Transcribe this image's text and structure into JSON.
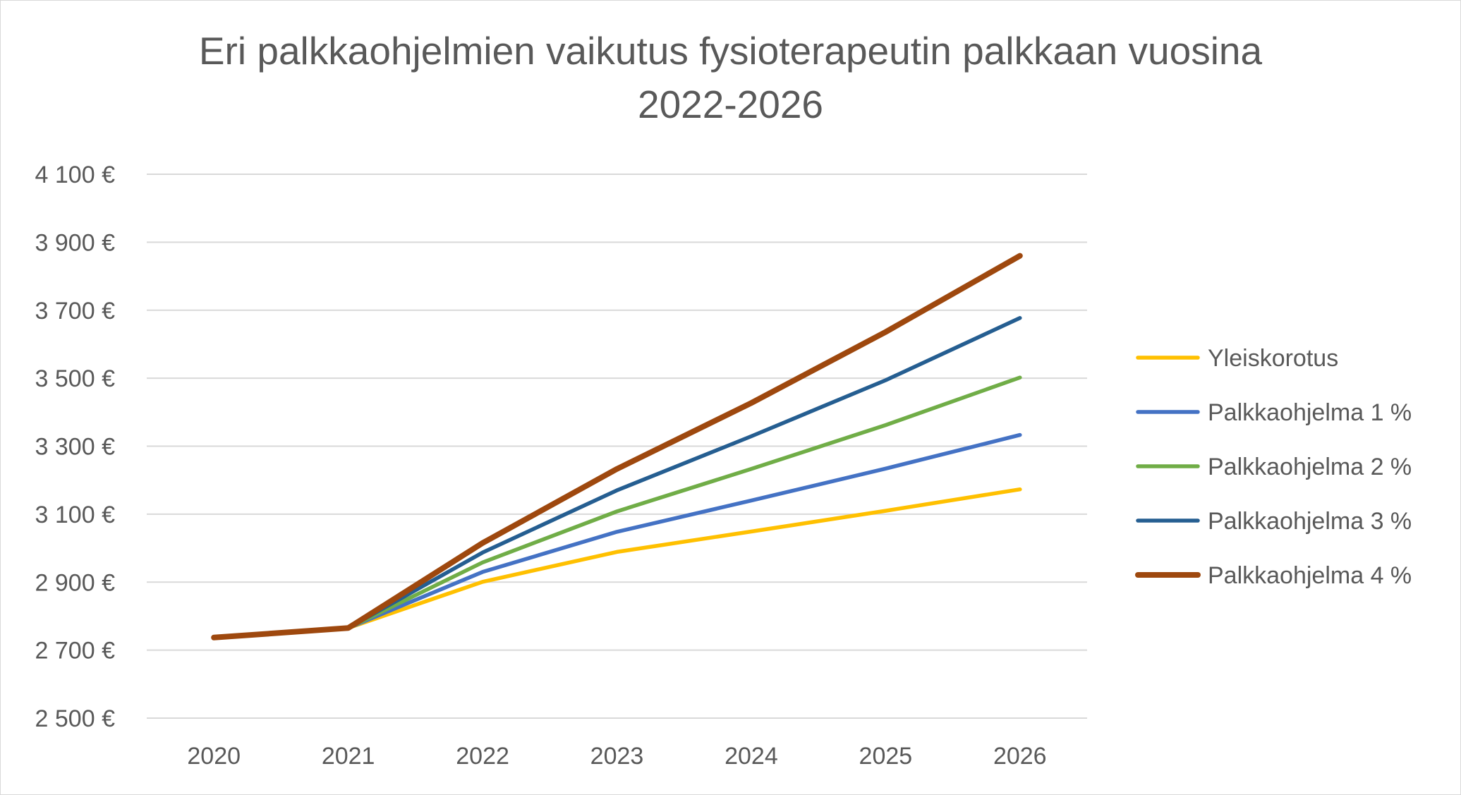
{
  "chart_data": {
    "type": "line",
    "title_line1": "Eri palkkaohjelmien vaikutus fysioterapeutin palkkaan vuosina",
    "title_line2": "2022-2026",
    "x": [
      "2020",
      "2021",
      "2022",
      "2023",
      "2024",
      "2025",
      "2026"
    ],
    "ylim": [
      2500,
      4100
    ],
    "y_ticks": [
      2500,
      2700,
      2900,
      3100,
      3300,
      3500,
      3700,
      3900,
      4100
    ],
    "y_tick_labels": [
      "2 500 €",
      "2 700 €",
      "2 900 €",
      "3 100 €",
      "3 300 €",
      "3 500 €",
      "3 700 €",
      "3 900 €",
      "4 100 €"
    ],
    "grid": "horizontal",
    "legend_position": "right",
    "series": [
      {
        "name": "Yleiskorotus",
        "color": "#FFC000",
        "values": [
          2737,
          2765,
          2901,
          2989,
          3049,
          3110,
          3173
        ]
      },
      {
        "name": "Palkkaohjelma 1 %",
        "color": "#4472C4",
        "values": [
          2737,
          2765,
          2930,
          3048,
          3140,
          3234,
          3333
        ]
      },
      {
        "name": "Palkkaohjelma 2 %",
        "color": "#70AD47",
        "values": [
          2737,
          2765,
          2958,
          3108,
          3233,
          3362,
          3502
        ]
      },
      {
        "name": "Palkkaohjelma 3 %",
        "color": "#255E91",
        "values": [
          2737,
          2765,
          2987,
          3170,
          3329,
          3494,
          3677
        ]
      },
      {
        "name": "Palkkaohjelma 4 %",
        "color": "#9E480E",
        "values": [
          2737,
          2765,
          3015,
          3233,
          3427,
          3636,
          3860
        ]
      }
    ]
  }
}
